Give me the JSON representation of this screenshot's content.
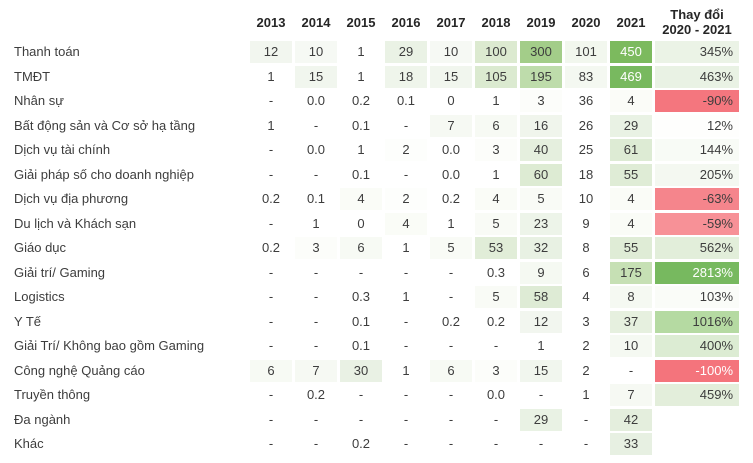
{
  "style": {
    "value_text": "#3d3d3d",
    "header_text": "#262626",
    "white_text": "#ffffff",
    "strong_green": "#77b95f",
    "strong_red": "#f4747c",
    "page_bg": "#ffffff"
  },
  "chart_data": {
    "type": "heatmap",
    "columns": [
      "2013",
      "2014",
      "2015",
      "2016",
      "2017",
      "2018",
      "2019",
      "2020",
      "2021"
    ],
    "change_header": [
      "Thay đổi",
      "2020 - 2021"
    ],
    "rows": [
      {
        "label": "Thanh toán",
        "values": [
          "12",
          "10",
          "1",
          "29",
          "10",
          "100",
          "300",
          "101",
          "450"
        ],
        "bgs": [
          "#f2f6ef",
          "#f6f9f4",
          "#ffffff",
          "#eaf2e5",
          "#f6f9f4",
          "#dcead0",
          "#a3cd89",
          "#f2f7ee",
          "#7cba5e"
        ],
        "white_cells": [
          8
        ],
        "change": {
          "v": "345%",
          "bg": "#ebf3e6",
          "white": false
        }
      },
      {
        "label": "TMĐT",
        "values": [
          "1",
          "15",
          "1",
          "18",
          "15",
          "105",
          "195",
          "83",
          "469"
        ],
        "bgs": [
          "#ffffff",
          "#f1f6ee",
          "#ffffff",
          "#eff5eb",
          "#f1f6ee",
          "#dbead0",
          "#bedcab",
          "#f4f8f1",
          "#78b95f"
        ],
        "white_cells": [
          8
        ],
        "change": {
          "v": "463%",
          "bg": "#e9f2e4",
          "white": false
        }
      },
      {
        "label": "Nhân sự",
        "values": [
          "-",
          "0.0",
          "0.2",
          "0.1",
          "0",
          "1",
          "3",
          "36",
          "4"
        ],
        "bgs": [
          "#ffffff",
          "#ffffff",
          "#ffffff",
          "#ffffff",
          "#ffffff",
          "#ffffff",
          "#fcfdfa",
          "#ffffff",
          "#fbfcf8"
        ],
        "white_cells": [],
        "change": {
          "v": "-90%",
          "bg": "#f4767e",
          "white": false
        }
      },
      {
        "label": "Bất động sản và Cơ sở hạ tầng",
        "values": [
          "1",
          "-",
          "0.1",
          "-",
          "7",
          "6",
          "16",
          "26",
          "29"
        ],
        "bgs": [
          "#ffffff",
          "#ffffff",
          "#ffffff",
          "#ffffff",
          "#f6f9f3",
          "#f7faf4",
          "#f0f5ec",
          "#ffffff",
          "#e9f2e4"
        ],
        "white_cells": [],
        "change": {
          "v": "12%",
          "bg": "#fefefd",
          "white": false
        }
      },
      {
        "label": "Dịch vụ tài chính",
        "values": [
          "-",
          "0.0",
          "1",
          "2",
          "0.0",
          "3",
          "40",
          "25",
          "61"
        ],
        "bgs": [
          "#ffffff",
          "#ffffff",
          "#ffffff",
          "#fdfefc",
          "#ffffff",
          "#fcfdfa",
          "#e5efde",
          "#ffffff",
          "#ddebd4"
        ],
        "white_cells": [],
        "change": {
          "v": "144%",
          "bg": "#f8fbf6",
          "white": false
        }
      },
      {
        "label": "Giải pháp số cho doanh nghiệp",
        "values": [
          "-",
          "-",
          "0.1",
          "-",
          "0.0",
          "1",
          "60",
          "18",
          "55"
        ],
        "bgs": [
          "#ffffff",
          "#ffffff",
          "#ffffff",
          "#ffffff",
          "#ffffff",
          "#ffffff",
          "#ddebd3",
          "#ffffff",
          "#dfecd6"
        ],
        "white_cells": [],
        "change": {
          "v": "205%",
          "bg": "#f4f8f1",
          "white": false
        }
      },
      {
        "label": "Dịch vụ địa phương",
        "values": [
          "0.2",
          "0.1",
          "4",
          "2",
          "0.2",
          "4",
          "5",
          "10",
          "4"
        ],
        "bgs": [
          "#ffffff",
          "#ffffff",
          "#fafcf7",
          "#fdfefc",
          "#ffffff",
          "#fafcf7",
          "#f9fbf6",
          "#ffffff",
          "#fafcf7"
        ],
        "white_cells": [],
        "change": {
          "v": "-63%",
          "bg": "#f5858c",
          "white": false
        }
      },
      {
        "label": "Du lịch và Khách sạn",
        "values": [
          "-",
          "1",
          "0",
          "4",
          "1",
          "5",
          "23",
          "9",
          "4"
        ],
        "bgs": [
          "#ffffff",
          "#ffffff",
          "#ffffff",
          "#fafcf7",
          "#ffffff",
          "#f9fbf6",
          "#edf4e9",
          "#ffffff",
          "#fafcf7"
        ],
        "white_cells": [],
        "change": {
          "v": "-59%",
          "bg": "#f79197",
          "white": false
        }
      },
      {
        "label": "Giáo dục",
        "values": [
          "0.2",
          "3",
          "6",
          "1",
          "5",
          "53",
          "32",
          "8",
          "55"
        ],
        "bgs": [
          "#ffffff",
          "#fcfdfa",
          "#f7faf4",
          "#ffffff",
          "#f9fbf6",
          "#e1edd8",
          "#e8f1e3",
          "#ffffff",
          "#dfecd6"
        ],
        "white_cells": [],
        "change": {
          "v": "562%",
          "bg": "#e2eeda",
          "white": false
        }
      },
      {
        "label": "Giải trí/ Gaming",
        "values": [
          "-",
          "-",
          "-",
          "-",
          "-",
          "0.3",
          "9",
          "6",
          "175"
        ],
        "bgs": [
          "#ffffff",
          "#ffffff",
          "#ffffff",
          "#ffffff",
          "#ffffff",
          "#ffffff",
          "#f5f9f2",
          "#ffffff",
          "#c6e0b4"
        ],
        "white_cells": [],
        "change": {
          "v": "2813%",
          "bg": "#77b95f",
          "white": true
        }
      },
      {
        "label": "Logistics",
        "values": [
          "-",
          "-",
          "0.3",
          "1",
          "-",
          "5",
          "58",
          "4",
          "8"
        ],
        "bgs": [
          "#ffffff",
          "#ffffff",
          "#ffffff",
          "#ffffff",
          "#ffffff",
          "#f9fbf6",
          "#deebd5",
          "#ffffff",
          "#f5f9f2"
        ],
        "white_cells": [],
        "change": {
          "v": "103%",
          "bg": "#fafcf8",
          "white": false
        }
      },
      {
        "label": "Y Tế",
        "values": [
          "-",
          "-",
          "0.1",
          "-",
          "0.2",
          "0.2",
          "12",
          "3",
          "37"
        ],
        "bgs": [
          "#ffffff",
          "#ffffff",
          "#ffffff",
          "#ffffff",
          "#ffffff",
          "#ffffff",
          "#f2f6ef",
          "#ffffff",
          "#e6f0df"
        ],
        "white_cells": [],
        "change": {
          "v": "1016%",
          "bg": "#b5daa2",
          "white": false
        }
      },
      {
        "label": "Giải Trí/ Không bao gồm Gaming",
        "values": [
          "-",
          "-",
          "0.1",
          "-",
          "-",
          "-",
          "1",
          "2",
          "10"
        ],
        "bgs": [
          "#ffffff",
          "#ffffff",
          "#ffffff",
          "#ffffff",
          "#ffffff",
          "#ffffff",
          "#ffffff",
          "#ffffff",
          "#f5f9f2"
        ],
        "white_cells": [],
        "change": {
          "v": "400%",
          "bg": "#dcecd3",
          "white": false
        }
      },
      {
        "label": "Công nghệ Quảng cáo",
        "values": [
          "6",
          "7",
          "30",
          "1",
          "6",
          "3",
          "15",
          "2",
          "-"
        ],
        "bgs": [
          "#f7faf4",
          "#f6f9f3",
          "#e9f1e4",
          "#ffffff",
          "#f7faf4",
          "#fcfdfa",
          "#f1f6ee",
          "#ffffff",
          "#ffffff"
        ],
        "white_cells": [],
        "change": {
          "v": "-100%",
          "bg": "#f4747c",
          "white": true
        }
      },
      {
        "label": "Truyền thông",
        "values": [
          "-",
          "0.2",
          "-",
          "-",
          "-",
          "0.0",
          "-",
          "1",
          "7"
        ],
        "bgs": [
          "#ffffff",
          "#ffffff",
          "#ffffff",
          "#ffffff",
          "#ffffff",
          "#ffffff",
          "#ffffff",
          "#ffffff",
          "#f6f9f3"
        ],
        "white_cells": [],
        "change": {
          "v": "459%",
          "bg": "#e3eedb",
          "white": false
        }
      },
      {
        "label": "Đa ngành",
        "values": [
          "-",
          "-",
          "-",
          "-",
          "-",
          "-",
          "29",
          "-",
          "42"
        ],
        "bgs": [
          "#ffffff",
          "#ffffff",
          "#ffffff",
          "#ffffff",
          "#ffffff",
          "#ffffff",
          "#e9f2e4",
          "#ffffff",
          "#e4eedd"
        ],
        "white_cells": [],
        "change": null
      },
      {
        "label": "Khác",
        "values": [
          "-",
          "-",
          "0.2",
          "-",
          "-",
          "-",
          "-",
          "-",
          "33"
        ],
        "bgs": [
          "#ffffff",
          "#ffffff",
          "#ffffff",
          "#ffffff",
          "#ffffff",
          "#ffffff",
          "#ffffff",
          "#ffffff",
          "#e7f0e2"
        ],
        "white_cells": [],
        "change": null
      }
    ]
  }
}
